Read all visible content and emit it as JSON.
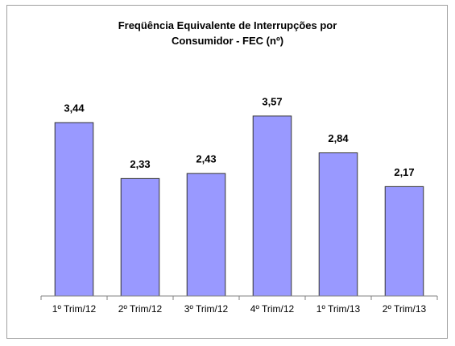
{
  "chart_data": {
    "type": "bar",
    "title": "Freqüência Equivalente de Interrupções por Consumidor - FEC (nº)",
    "categories": [
      "1º Trim/12",
      "2º Trim/12",
      "3º Trim/12",
      "4º Trim/12",
      "1º Trim/13",
      "2º Trim/13"
    ],
    "values": [
      3.44,
      2.33,
      2.43,
      3.57,
      2.84,
      2.17
    ],
    "value_labels": [
      "3,44",
      "2,33",
      "2,43",
      "3,57",
      "2,84",
      "2,17"
    ],
    "color": "#9999ff",
    "ylim": [
      0,
      4
    ]
  }
}
